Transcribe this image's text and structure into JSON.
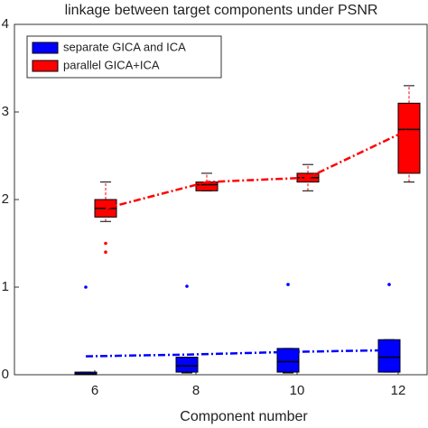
{
  "chart_data": {
    "type": "box",
    "title": "linkage between target components under PSNR",
    "x_label": "Component number",
    "categories": [
      "6",
      "8",
      "10",
      "12"
    ],
    "ylim": [
      0,
      4
    ],
    "yticks": [
      0,
      1,
      2,
      3,
      4
    ],
    "legend": "upper left",
    "series": [
      {
        "name": "separate GICA and ICA",
        "color": "#0000ff",
        "whisker_low": [
          0,
          0.02,
          0.02,
          0.03
        ],
        "q1": [
          0,
          0.03,
          0.03,
          0.03
        ],
        "median": [
          0.01,
          0.1,
          0.15,
          0.2
        ],
        "q3": [
          0.03,
          0.2,
          0.3,
          0.4
        ],
        "whisker_high": [
          0.03,
          0.2,
          0.3,
          0.4
        ],
        "outliers": [
          [
            1.0
          ],
          [
            1.01
          ],
          [
            1.03
          ],
          [
            1.03
          ]
        ],
        "trend": [
          0.21,
          0.23,
          0.26,
          0.28
        ]
      },
      {
        "name": "parallel GICA+ICA",
        "color": "#ff0000",
        "whisker_low": [
          1.75,
          2.1,
          2.1,
          2.2
        ],
        "q1": [
          1.8,
          2.1,
          2.2,
          2.3
        ],
        "median": [
          1.9,
          2.17,
          2.25,
          2.8
        ],
        "q3": [
          2.0,
          2.2,
          2.3,
          3.1
        ],
        "whisker_high": [
          2.2,
          2.3,
          2.4,
          3.3
        ],
        "outliers": [
          [
            1.5,
            1.4
          ],
          [],
          [],
          []
        ],
        "trend": [
          1.9,
          2.2,
          2.25,
          2.8
        ]
      }
    ]
  }
}
